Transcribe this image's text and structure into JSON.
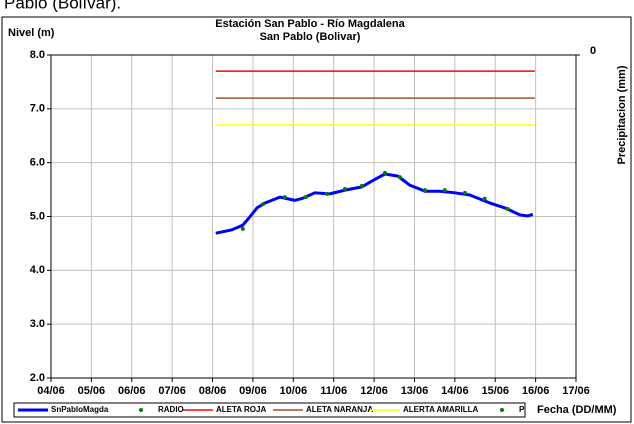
{
  "caption": "Pablo (Bolívar).",
  "chart_data": {
    "type": "line",
    "title": "Estación San Pablo - Río Magdalena",
    "subtitle": "San Pablo (Bolivar)",
    "ylabel": "Nivel (m)",
    "y2label": "Precipitacion (mm)",
    "xlabel": "Fecha (DD/MM)",
    "xlim": [
      4,
      17
    ],
    "xticks": [
      {
        "value": 4,
        "label": "04/06"
      },
      {
        "value": 5,
        "label": "05/06"
      },
      {
        "value": 6,
        "label": "06/06"
      },
      {
        "value": 7,
        "label": "07/06"
      },
      {
        "value": 8,
        "label": "08/06"
      },
      {
        "value": 9,
        "label": "09/06"
      },
      {
        "value": 10,
        "label": "10/06"
      },
      {
        "value": 11,
        "label": "11/06"
      },
      {
        "value": 12,
        "label": "12/06"
      },
      {
        "value": 13,
        "label": "13/06"
      },
      {
        "value": 14,
        "label": "14/06"
      },
      {
        "value": 15,
        "label": "15/06"
      },
      {
        "value": 16,
        "label": "16/06"
      },
      {
        "value": 17,
        "label": "17/06"
      }
    ],
    "ylim": [
      2,
      8
    ],
    "yticks": [
      {
        "value": 2,
        "label": "2.0"
      },
      {
        "value": 3,
        "label": "3.0"
      },
      {
        "value": 4,
        "label": "4.0"
      },
      {
        "value": 5,
        "label": "5.0"
      },
      {
        "value": 6,
        "label": "6.0"
      },
      {
        "value": 7,
        "label": "7.0"
      },
      {
        "value": 8,
        "label": "8.0"
      }
    ],
    "y2ticks": [
      0
    ],
    "grid": true,
    "series": [
      {
        "name": "SnPabloMagda",
        "color": "#0000ff",
        "style": "line",
        "width": 3,
        "x": [
          8.08,
          8.47,
          8.75,
          8.92,
          9.1,
          9.3,
          9.67,
          10.04,
          10.24,
          10.53,
          10.9,
          11.28,
          11.7,
          11.95,
          12.27,
          12.59,
          12.89,
          13.26,
          13.63,
          14.0,
          14.37,
          14.87,
          15.24,
          15.61,
          15.81,
          15.93
        ],
        "values": [
          4.69,
          4.75,
          4.84,
          4.99,
          5.16,
          5.25,
          5.36,
          5.3,
          5.34,
          5.44,
          5.42,
          5.49,
          5.55,
          5.66,
          5.79,
          5.75,
          5.58,
          5.47,
          5.47,
          5.44,
          5.4,
          5.25,
          5.16,
          5.03,
          5.01,
          5.04
        ]
      },
      {
        "name": "RADIO",
        "color": "#008000",
        "style": "dots",
        "x": [
          8.75,
          9.25,
          9.79,
          10.31,
          10.83,
          11.28,
          11.7,
          12.27,
          12.64,
          13.26,
          13.75,
          14.25,
          14.74,
          15.31
        ],
        "values": [
          4.77,
          5.23,
          5.36,
          5.36,
          5.42,
          5.51,
          5.57,
          5.81,
          5.73,
          5.49,
          5.49,
          5.44,
          5.33,
          5.14
        ]
      },
      {
        "name": "ALETA ROJA",
        "color": "#ff0000",
        "style": "line",
        "width": 1.5,
        "x": [
          8.08,
          15.98
        ],
        "values": [
          7.7,
          7.7
        ]
      },
      {
        "name": "ALETA NARANJA",
        "color": "#a0522d",
        "style": "line",
        "width": 1.5,
        "x": [
          8.08,
          15.98
        ],
        "values": [
          7.2,
          7.2
        ]
      },
      {
        "name": "ALERTA AMARILLA",
        "color": "#ffff00",
        "style": "line",
        "width": 1.5,
        "x": [
          8.08,
          15.98
        ],
        "values": [
          6.7,
          6.7
        ]
      },
      {
        "name": "P",
        "color": "#008000",
        "style": "dots",
        "x": [],
        "values": []
      }
    ]
  }
}
